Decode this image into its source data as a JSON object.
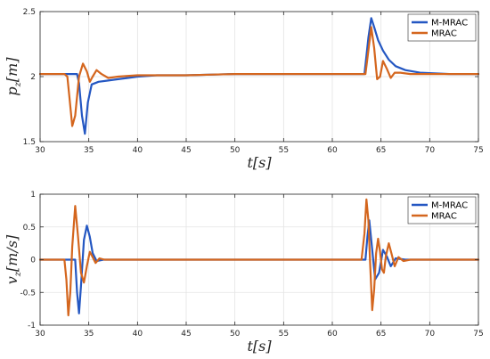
{
  "chart_data": [
    {
      "type": "line",
      "xlabel": "t[s]",
      "ylabel": "p_z[m]",
      "xlim": [
        30,
        75
      ],
      "ylim": [
        1.5,
        2.5
      ],
      "xticks": [
        30,
        35,
        40,
        45,
        50,
        55,
        60,
        65,
        70,
        75
      ],
      "yticks": [
        1.5,
        2,
        2.5
      ],
      "ytick_labels": [
        "1.5",
        "2",
        "2.5"
      ],
      "grid": true,
      "legend_position": "top-right",
      "series": [
        {
          "name": "M-MRAC",
          "color": "#2457c2",
          "x": [
            30,
            31,
            32,
            33,
            33.8,
            34.0,
            34.3,
            34.6,
            34.9,
            35.3,
            36,
            37,
            38,
            39,
            40,
            42,
            45,
            50,
            55,
            60,
            63.3,
            63.7,
            64.0,
            64.3,
            64.7,
            65.2,
            65.8,
            66.5,
            67.5,
            69,
            72,
            75
          ],
          "y": [
            2.02,
            2.02,
            2.02,
            2.02,
            2.02,
            1.95,
            1.7,
            1.56,
            1.8,
            1.94,
            1.96,
            1.97,
            1.98,
            1.99,
            2.0,
            2.01,
            2.01,
            2.02,
            2.02,
            2.02,
            2.02,
            2.3,
            2.45,
            2.38,
            2.28,
            2.2,
            2.13,
            2.08,
            2.05,
            2.03,
            2.02,
            2.02
          ]
        },
        {
          "name": "MRAC",
          "color": "#d4661e",
          "x": [
            30,
            31,
            32,
            32.5,
            32.8,
            33.0,
            33.3,
            33.6,
            34.0,
            34.4,
            34.8,
            35.1,
            35.4,
            35.8,
            36.3,
            37,
            38,
            40,
            45,
            50,
            55,
            60,
            63.4,
            63.7,
            64.0,
            64.3,
            64.6,
            64.9,
            65.2,
            65.6,
            66.0,
            66.4,
            67.0,
            68,
            70,
            75
          ],
          "y": [
            2.02,
            2.02,
            2.02,
            2.02,
            2.0,
            1.85,
            1.62,
            1.7,
            2.0,
            2.1,
            2.04,
            1.96,
            2.0,
            2.05,
            2.02,
            1.99,
            2.0,
            2.01,
            2.01,
            2.02,
            2.02,
            2.02,
            2.02,
            2.2,
            2.38,
            2.22,
            1.98,
            2.0,
            2.12,
            2.06,
            1.99,
            2.03,
            2.03,
            2.02,
            2.02,
            2.02
          ]
        }
      ]
    },
    {
      "type": "line",
      "xlabel": "t[s]",
      "ylabel": "v_z[m/s]",
      "xlim": [
        30,
        75
      ],
      "ylim": [
        -1,
        1
      ],
      "xticks": [
        30,
        35,
        40,
        45,
        50,
        55,
        60,
        65,
        70,
        75
      ],
      "yticks": [
        -1,
        -0.5,
        0,
        0.5,
        1
      ],
      "ytick_labels": [
        "-1",
        "-0.5",
        "0",
        "0.5",
        "1"
      ],
      "grid": true,
      "legend_position": "top-right",
      "series": [
        {
          "name": "M-MRAC",
          "color": "#2457c2",
          "x": [
            30,
            31,
            32,
            33,
            33.6,
            33.8,
            34.0,
            34.2,
            34.5,
            34.8,
            35.1,
            35.4,
            35.8,
            36.5,
            38,
            42,
            48,
            55,
            60,
            63.0,
            63.4,
            63.6,
            63.8,
            64.0,
            64.4,
            64.8,
            65.2,
            65.6,
            66.0,
            66.5,
            67.5,
            70,
            75
          ],
          "y": [
            0.0,
            0.0,
            0.0,
            0.0,
            0.0,
            -0.5,
            -0.82,
            -0.4,
            0.3,
            0.52,
            0.35,
            0.1,
            -0.02,
            0.0,
            0.0,
            0.0,
            0.0,
            0.0,
            0.0,
            0.0,
            0.0,
            0.35,
            0.6,
            0.3,
            -0.3,
            -0.2,
            0.15,
            0.05,
            -0.1,
            0.02,
            0.0,
            0.0,
            0.0
          ]
        },
        {
          "name": "MRAC",
          "color": "#d4661e",
          "x": [
            30,
            31,
            32,
            32.5,
            32.7,
            32.9,
            33.1,
            33.3,
            33.6,
            33.9,
            34.2,
            34.5,
            34.8,
            35.1,
            35.4,
            35.7,
            36.1,
            36.6,
            37.5,
            40,
            45,
            50,
            55,
            60,
            63.0,
            63.3,
            63.5,
            63.7,
            63.9,
            64.1,
            64.3,
            64.5,
            64.7,
            64.9,
            65.1,
            65.3,
            65.5,
            65.8,
            66.1,
            66.4,
            66.8,
            67.3,
            68,
            70,
            75
          ],
          "y": [
            0.0,
            0.0,
            0.0,
            0.0,
            -0.3,
            -0.85,
            -0.5,
            0.2,
            0.82,
            0.35,
            -0.2,
            -0.35,
            -0.1,
            0.12,
            0.04,
            -0.05,
            0.02,
            0.0,
            0.0,
            0.0,
            0.0,
            0.0,
            0.0,
            0.0,
            0.0,
            0.4,
            0.92,
            0.6,
            -0.1,
            -0.77,
            -0.45,
            0.1,
            0.32,
            0.12,
            -0.15,
            -0.2,
            0.05,
            0.25,
            0.08,
            -0.1,
            0.04,
            -0.02,
            0.0,
            0.0,
            0.0
          ]
        }
      ]
    }
  ]
}
